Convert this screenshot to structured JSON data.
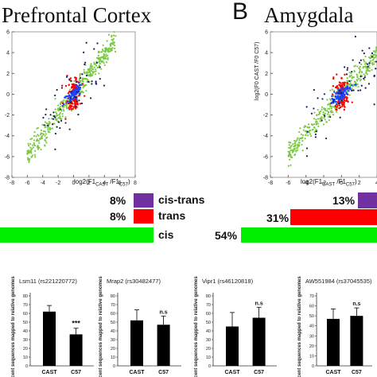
{
  "panel_titles": {
    "prefrontal": "Prefrontal Cortex",
    "amygdala": "Amygdala",
    "panel_letter": "B"
  },
  "axis_text": {
    "xlabel_main": "log2(F1",
    "xlabel_sub1": "CAST",
    "xlabel_mid": " /F1",
    "xlabel_sub2": "C57",
    "xlabel_end": ")",
    "ylabel_amygdala": "log2(F0 CAST /F0 C57)"
  },
  "colors": {
    "cis_trans": "#7030a0",
    "trans": "#ff0000",
    "cis": "#00ee00",
    "green_dots": "#7ac943",
    "dark_dots": "#1a1a5e",
    "blue_dots": "#2040ff"
  },
  "legend": {
    "prefrontal": {
      "cis_trans_pct": "8%",
      "trans_pct": "8%",
      "cis_pct": ""
    },
    "amygdala": {
      "cis_trans_pct": "13%",
      "trans_pct": "31%",
      "cis_pct": "54%"
    },
    "labels": {
      "cis_trans": "cis-trans",
      "trans": "trans",
      "cis": "cis"
    }
  },
  "bar_ylabel": "Percent sequences mapped to relative genomes",
  "chart_data": [
    {
      "type": "scatter",
      "title": "Prefrontal Cortex",
      "xlabel": "log2(F1 CAST /F1 C57)",
      "ylabel": "",
      "xlim": [
        -8,
        8
      ],
      "ylim": [
        -8,
        6
      ],
      "xticks": [
        -8,
        -6,
        -4,
        -2,
        0,
        2,
        4,
        6,
        8
      ],
      "yticks": [
        -8,
        -6,
        -4,
        -2,
        0,
        2,
        4,
        6
      ],
      "series": [
        {
          "name": "cis",
          "color": "#7ac943",
          "trend": {
            "slope": 0.9,
            "x_range": [
              -6.5,
              6
            ]
          }
        },
        {
          "name": "trans",
          "color": "#ff0000",
          "trend": {
            "x_range": [
              -1.5,
              1.5
            ]
          }
        },
        {
          "name": "cis-trans",
          "color": "#2040ff",
          "trend": {
            "x_range": [
              -1,
              1
            ]
          }
        }
      ]
    },
    {
      "type": "scatter",
      "title": "Amygdala",
      "xlabel": "log2(F1 CAST /F1 C57)",
      "ylabel": "log2(F0 CAST /F0 C57)",
      "xlim": [
        -8,
        4
      ],
      "ylim": [
        -8,
        6
      ],
      "xticks": [
        -8,
        -6,
        -4,
        -2,
        0,
        2,
        4
      ],
      "yticks": [
        -8,
        -6,
        -4,
        -2,
        0,
        2,
        4,
        6
      ],
      "series": [
        {
          "name": "cis",
          "color": "#7ac943"
        },
        {
          "name": "trans",
          "color": "#ff0000"
        },
        {
          "name": "cis-trans",
          "color": "#2040ff"
        }
      ]
    },
    {
      "type": "bar",
      "title": "Lsm11 (rs221220772)",
      "categories": [
        "CAST",
        "C57"
      ],
      "values": [
        62,
        36
      ],
      "errors": [
        7,
        7
      ],
      "ylim": [
        0,
        80
      ],
      "yticks": [
        0,
        10,
        20,
        30,
        40,
        50,
        60,
        70,
        80
      ],
      "annotations": [
        "",
        "***"
      ]
    },
    {
      "type": "bar",
      "title": "Mrap2 (rs30482477)",
      "categories": [
        "CAST",
        "C57"
      ],
      "values": [
        52,
        47
      ],
      "errors": [
        12,
        10
      ],
      "ylim": [
        0,
        80
      ],
      "yticks": [
        0,
        10,
        20,
        30,
        40,
        50,
        60,
        70,
        80
      ],
      "annotations": [
        "",
        "n.s"
      ]
    },
    {
      "type": "bar",
      "title": "Vipr1 (rs46120818)",
      "categories": [
        "CAST",
        "C57"
      ],
      "values": [
        45,
        55
      ],
      "errors": [
        16,
        12
      ],
      "ylim": [
        0,
        80
      ],
      "yticks": [
        0,
        10,
        20,
        30,
        40,
        50,
        60,
        70,
        80
      ],
      "annotations": [
        "",
        "n.s"
      ]
    },
    {
      "type": "bar",
      "title": "AW551984 (rs37045535)",
      "categories": [
        "CAST",
        "C57"
      ],
      "values": [
        47,
        50
      ],
      "errors": [
        10,
        8
      ],
      "ylim": [
        0,
        70
      ],
      "yticks": [
        0,
        10,
        20,
        30,
        40,
        50,
        60,
        70
      ],
      "annotations": [
        "",
        "n.s"
      ]
    }
  ]
}
